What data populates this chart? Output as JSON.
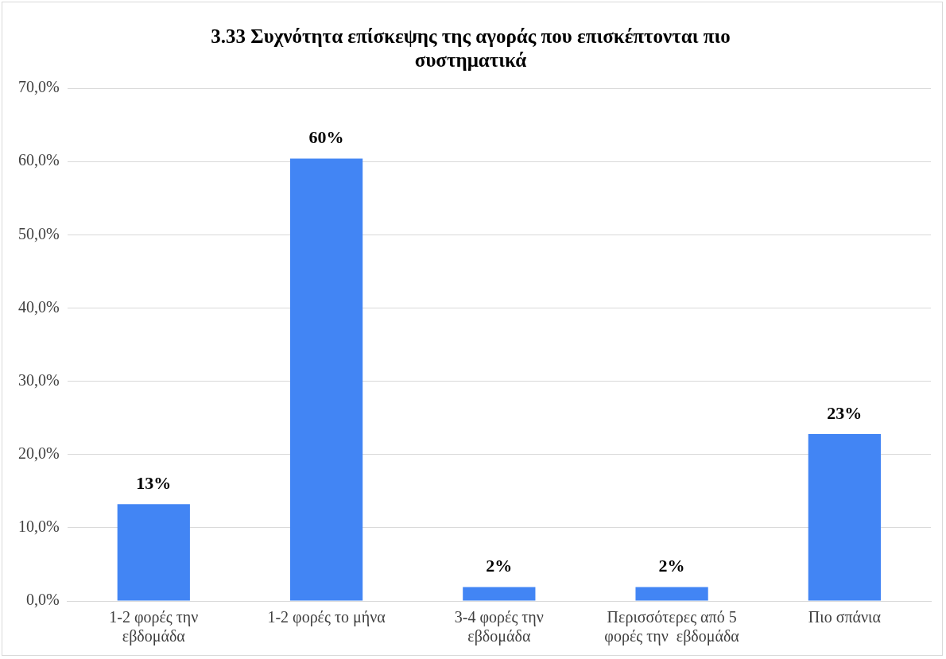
{
  "chart_data": {
    "type": "bar",
    "title": "3.33 Συχνότητα επίσκεψης της αγοράς που επισκέπτονται πιο συστηματικά",
    "categories": [
      "1-2 φορές την εβδομάδα",
      "1-2 φορές το μήνα",
      "3-4 φορές την εβδομάδα",
      "Περισσότερες από 5 φορές την  εβδομάδα",
      "Πιο σπάνια"
    ],
    "values": [
      13.2,
      60.4,
      1.9,
      1.9,
      22.8
    ],
    "value_labels": [
      "13%",
      "60%",
      "2%",
      "2%",
      "23%"
    ],
    "color": "#4285f4",
    "ylim": [
      0,
      70
    ],
    "yticks": [
      {
        "value": 0,
        "label": "0,0%"
      },
      {
        "value": 10,
        "label": "10,0%"
      },
      {
        "value": 20,
        "label": "20,0%"
      },
      {
        "value": 30,
        "label": "30,0%"
      },
      {
        "value": 40,
        "label": "40,0%"
      },
      {
        "value": 50,
        "label": "50,0%"
      },
      {
        "value": 60,
        "label": "60,0%"
      },
      {
        "value": 70,
        "label": "70,0%"
      }
    ],
    "grid": "y",
    "legend": false
  }
}
